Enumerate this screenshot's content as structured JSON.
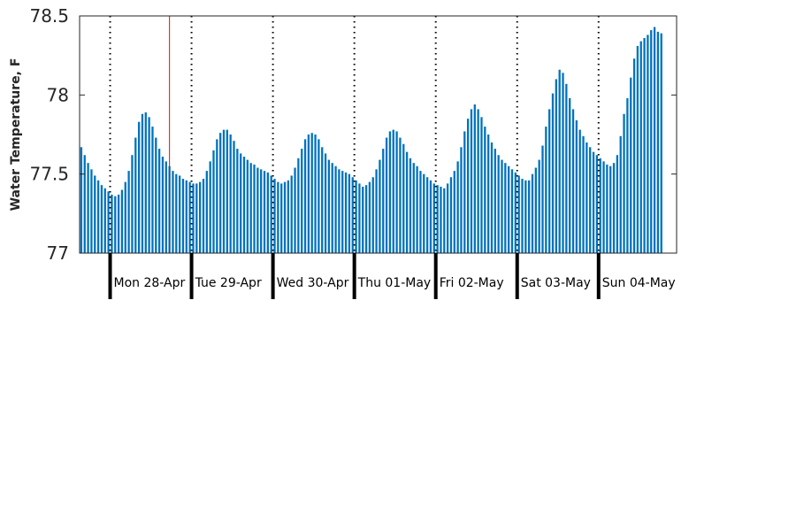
{
  "chart_data": {
    "type": "bar",
    "title": "",
    "xlabel": "",
    "ylabel": "Water Temperature, F",
    "ylim": [
      77,
      78.5
    ],
    "yticks": [
      {
        "value": 77,
        "label": "77"
      },
      {
        "value": 77.5,
        "label": "77.5"
      },
      {
        "value": 78,
        "label": "78"
      },
      {
        "value": 78.5,
        "label": "78.5"
      }
    ],
    "x_unit": "hours",
    "x_domain": [
      0,
      176
    ],
    "day_boundaries": [
      9,
      33,
      57,
      81,
      105,
      129,
      153
    ],
    "day_labels": [
      "Mon 28-Apr",
      "Tue 29-Apr",
      "Wed 30-Apr",
      "Thu 01-May",
      "Fri 02-May",
      "Sat 03-May",
      "Sun 04-May"
    ],
    "marker_hour": 26.5,
    "bar_color": "#0072bd",
    "marker_color": "#ff0000",
    "values": [
      77.67,
      77.62,
      77.57,
      77.53,
      77.49,
      77.46,
      77.43,
      77.41,
      77.39,
      77.37,
      77.36,
      77.37,
      77.4,
      77.45,
      77.52,
      77.62,
      77.73,
      77.83,
      77.88,
      77.89,
      77.86,
      77.8,
      77.73,
      77.66,
      77.61,
      77.58,
      77.55,
      77.52,
      77.5,
      77.49,
      77.47,
      77.46,
      77.45,
      77.44,
      77.44,
      77.45,
      77.47,
      77.52,
      77.58,
      77.65,
      77.72,
      77.76,
      77.78,
      77.78,
      77.75,
      77.71,
      77.66,
      77.63,
      77.61,
      77.59,
      77.57,
      77.56,
      77.54,
      77.53,
      77.52,
      77.51,
      77.49,
      77.47,
      77.45,
      77.44,
      77.45,
      77.46,
      77.49,
      77.54,
      77.6,
      77.66,
      77.72,
      77.75,
      77.76,
      77.75,
      77.72,
      77.67,
      77.63,
      77.59,
      77.57,
      77.55,
      77.53,
      77.52,
      77.51,
      77.5,
      77.48,
      77.46,
      77.44,
      77.42,
      77.43,
      77.45,
      77.48,
      77.53,
      77.59,
      77.66,
      77.73,
      77.77,
      77.78,
      77.77,
      77.73,
      77.69,
      77.64,
      77.6,
      77.57,
      77.55,
      77.52,
      77.5,
      77.48,
      77.46,
      77.44,
      77.43,
      77.42,
      77.41,
      77.44,
      77.48,
      77.52,
      77.58,
      77.67,
      77.77,
      77.85,
      77.91,
      77.94,
      77.91,
      77.86,
      77.8,
      77.75,
      77.7,
      77.66,
      77.62,
      77.59,
      77.57,
      77.55,
      77.53,
      77.51,
      77.49,
      77.47,
      77.46,
      77.46,
      77.5,
      77.54,
      77.59,
      77.68,
      77.8,
      77.91,
      78.01,
      78.1,
      78.16,
      78.14,
      78.07,
      77.98,
      77.91,
      77.84,
      77.78,
      77.74,
      77.7,
      77.67,
      77.64,
      77.62,
      77.6,
      77.58,
      77.56,
      77.55,
      77.57,
      77.62,
      77.74,
      77.88,
      77.98,
      78.11,
      78.23,
      78.31,
      78.34,
      78.36,
      78.38,
      78.41,
      78.43,
      78.4,
      78.39
    ]
  }
}
